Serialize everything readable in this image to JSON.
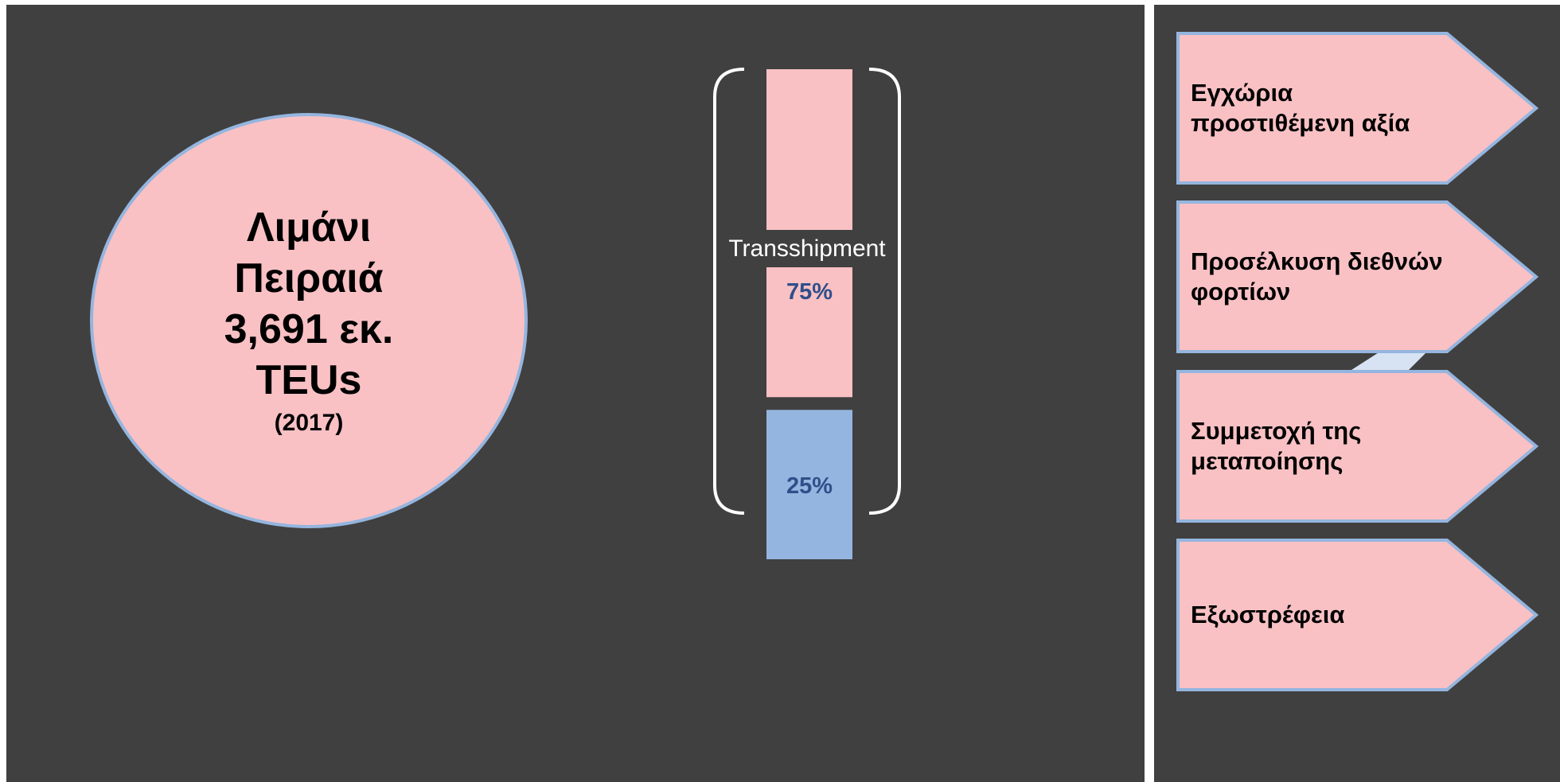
{
  "port": {
    "title_lines": [
      "Λιμάνι",
      "Πειραιά",
      "3,691 εκ.",
      "TEUs"
    ],
    "year": "(2017)"
  },
  "chart_data": {
    "type": "bar",
    "categories": [
      "Transshipment",
      ""
    ],
    "values": [
      75,
      25
    ],
    "labels": [
      "75%",
      "25%"
    ],
    "bracket_label": "Transshipment",
    "colors": [
      "#f9c1c4",
      "#94b5df"
    ],
    "value_label_color": "#2f4f8a"
  },
  "arrows": [
    {
      "label": "Εγχώρια προστιθέμενη αξία"
    },
    {
      "label": "Προσέλκυση διεθνών φορτίων"
    },
    {
      "label": "Συμμετοχή της μεταποίησης"
    },
    {
      "label": "Εξωστρέφεια"
    }
  ],
  "colors": {
    "background": "#404040",
    "pink": "#f9c1c4",
    "blue": "#94b5df",
    "divider": "#ffffff"
  }
}
